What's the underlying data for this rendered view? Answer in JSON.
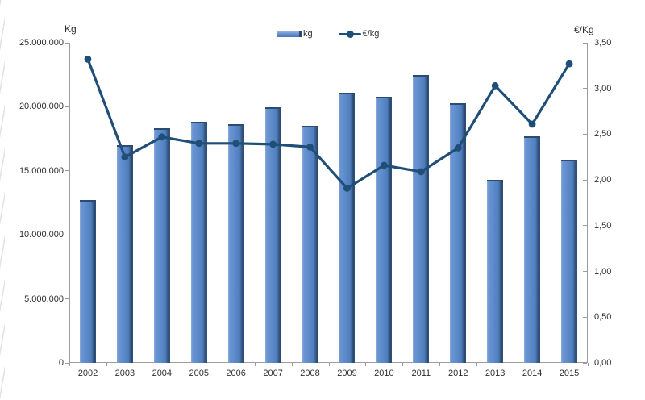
{
  "chart_data": {
    "type": "combo-bar-line",
    "title": "",
    "categories": [
      "2002",
      "2003",
      "2004",
      "2005",
      "2006",
      "2007",
      "2008",
      "2009",
      "2010",
      "2011",
      "2012",
      "2013",
      "2014",
      "2015"
    ],
    "series": [
      {
        "name": "kg",
        "type": "bar",
        "axis": "left",
        "values": [
          12700000,
          17000000,
          18300000,
          18850000,
          18650000,
          19950000,
          18500000,
          21100000,
          20750000,
          22450000,
          20300000,
          14300000,
          17700000,
          15900000
        ]
      },
      {
        "name": "€/kg",
        "type": "line",
        "axis": "right",
        "values": [
          3.32,
          2.25,
          2.47,
          2.4,
          2.4,
          2.39,
          2.36,
          1.91,
          2.16,
          2.09,
          2.35,
          3.03,
          2.61,
          3.27
        ]
      }
    ],
    "left_axis": {
      "title": "Kg",
      "min": 0,
      "max": 25000000,
      "step": 5000000,
      "tick_labels": [
        "0",
        "5.000.000",
        "10.000.000",
        "15.000.000",
        "20.000.000",
        "25.000.000"
      ]
    },
    "right_axis": {
      "title": "€/Kg",
      "min": 0,
      "max": 3.5,
      "step": 0.5,
      "tick_labels": [
        "0,00",
        "0,50",
        "1,00",
        "1,50",
        "2,00",
        "2,50",
        "3,00",
        "3,50"
      ]
    },
    "legend": {
      "position": "top-center",
      "entries": [
        {
          "label": "kg",
          "swatch": "bar"
        },
        {
          "label": "€/kg",
          "swatch": "line"
        }
      ]
    },
    "grid": false,
    "plot_background": "#ffffff"
  },
  "colors": {
    "bar_fill": "#5988c9",
    "bar_edge_dark": "#2b4b71",
    "line": "#1f4e79",
    "axis": "#9c9c9c",
    "text": "#2f2f2f"
  }
}
